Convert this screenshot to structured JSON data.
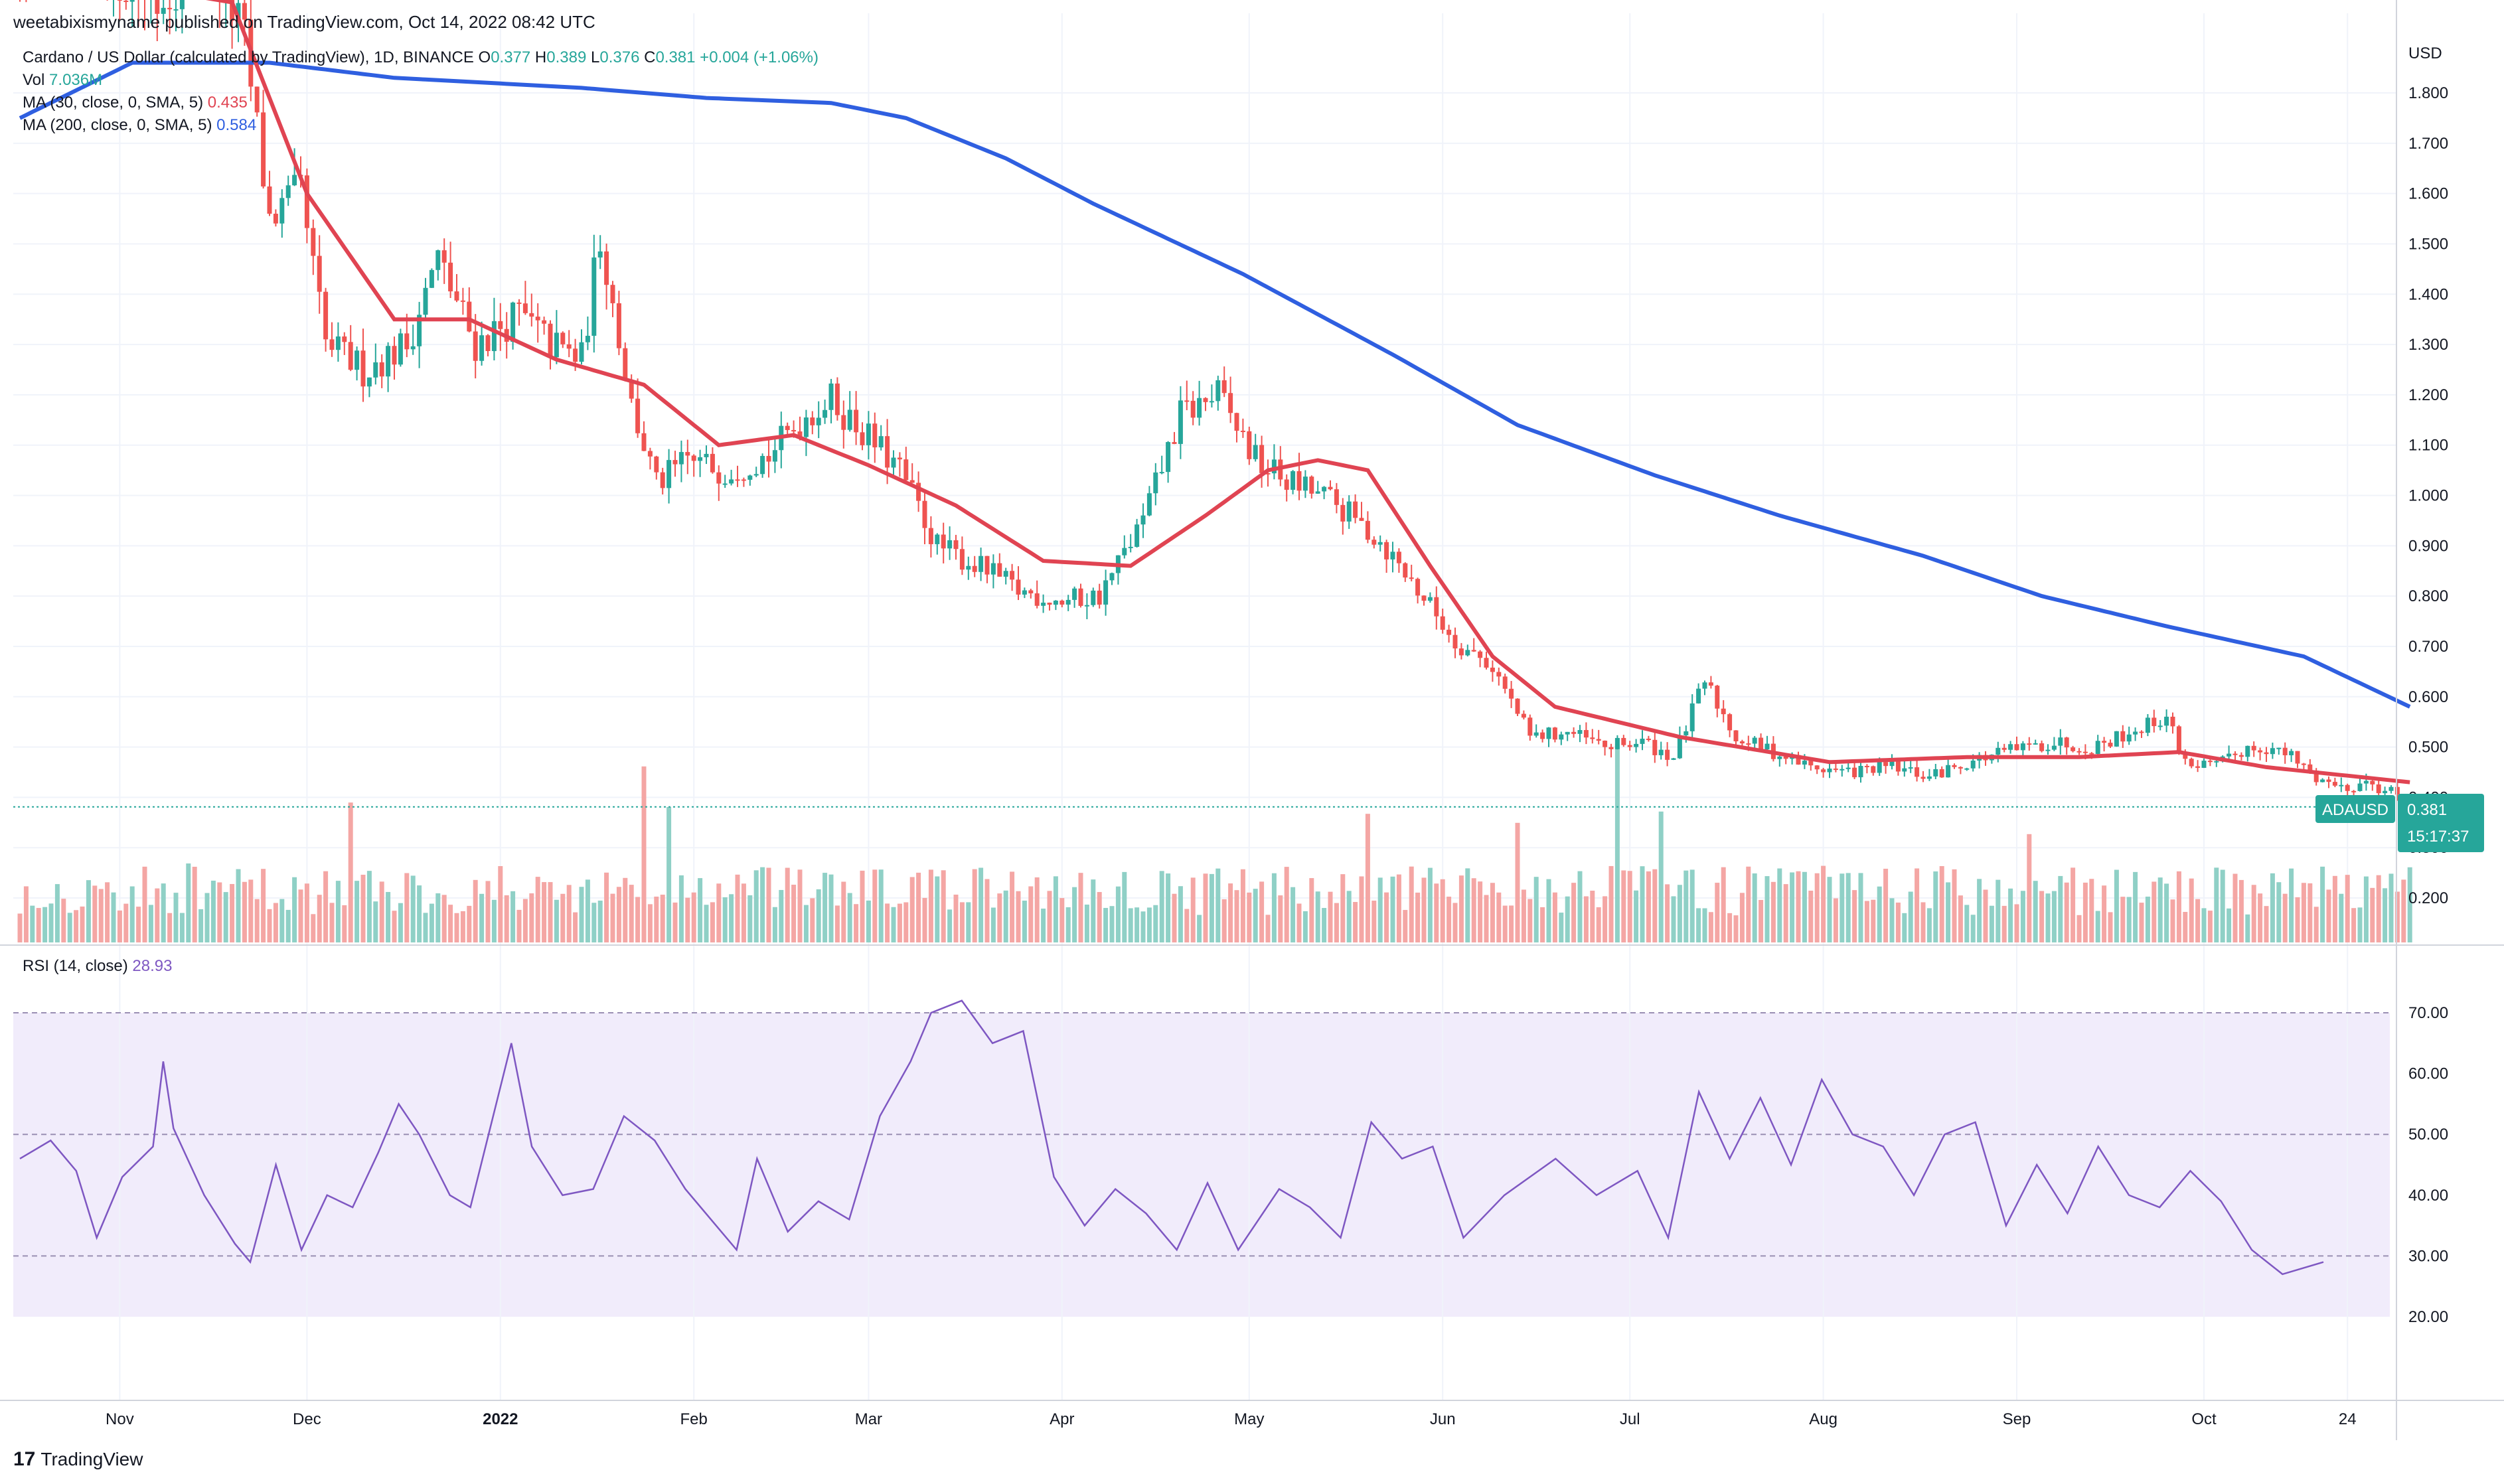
{
  "caption": "weetabixismyname published on TradingView.com, Oct 14, 2022 08:42 UTC",
  "legend": {
    "symbol": "Cardano / US Dollar (calculated by TradingView), 1D, BINANCE",
    "open_label": "O",
    "open": "0.377",
    "high_label": "H",
    "high": "0.389",
    "low_label": "L",
    "low": "0.376",
    "close_label": "C",
    "close": "0.381",
    "change": "+0.004 (+1.06%)",
    "vol_label": "Vol",
    "vol": "7.036M",
    "ma30_label": "MA (30, close, 0, SMA, 5)",
    "ma30": "0.435",
    "ma200_label": "MA (200, close, 0, SMA, 5)",
    "ma200": "0.584"
  },
  "rsi_legend": {
    "label": "RSI (14, close)",
    "value": "28.93"
  },
  "price_tag": {
    "symbol": "ADAUSD",
    "price": "0.381",
    "countdown": "15:17:37"
  },
  "footer": {
    "brand": "TradingView",
    "logo": "17"
  },
  "colors": {
    "up": "#26a69a",
    "down": "#ef5350",
    "ma30": "#e04452",
    "ma200": "#2f5fe0",
    "rsi": "#7e57c2",
    "rsi_band": "#f1ecfb"
  },
  "chart_data": [
    {
      "type": "candlestick",
      "unit": "USD",
      "yaxis_ticks": [
        "0.200",
        "0.300",
        "0.400",
        "0.500",
        "0.600",
        "0.700",
        "0.800",
        "0.900",
        "1.000",
        "1.100",
        "1.200",
        "1.300",
        "1.400",
        "1.500",
        "1.600",
        "1.700",
        "1.800"
      ],
      "xaxis_ticks": [
        "Nov",
        "Dec",
        "2022",
        "Feb",
        "Mar",
        "Apr",
        "May",
        "Jun",
        "Jul",
        "Aug",
        "Sep",
        "Oct",
        "24"
      ],
      "start_date": "2021-10-16",
      "end_date": "2022-10-14",
      "close_anchors": [
        [
          0,
          2.1
        ],
        [
          14,
          2.05
        ],
        [
          22,
          1.98
        ],
        [
          30,
          2.1
        ],
        [
          36,
          1.9
        ],
        [
          40,
          1.55
        ],
        [
          45,
          1.6
        ],
        [
          49,
          1.3
        ],
        [
          55,
          1.25
        ],
        [
          62,
          1.3
        ],
        [
          67,
          1.47
        ],
        [
          73,
          1.3
        ],
        [
          80,
          1.36
        ],
        [
          85,
          1.3
        ],
        [
          90,
          1.27
        ],
        [
          93,
          1.52
        ],
        [
          98,
          1.18
        ],
        [
          102,
          1.02
        ],
        [
          107,
          1.07
        ],
        [
          113,
          1.05
        ],
        [
          120,
          1.08
        ],
        [
          126,
          1.16
        ],
        [
          130,
          1.19
        ],
        [
          134,
          1.14
        ],
        [
          141,
          1.05
        ],
        [
          147,
          0.9
        ],
        [
          155,
          0.85
        ],
        [
          160,
          0.81
        ],
        [
          167,
          0.79
        ],
        [
          173,
          0.8
        ],
        [
          180,
          0.95
        ],
        [
          186,
          1.16
        ],
        [
          192,
          1.2
        ],
        [
          198,
          1.07
        ],
        [
          203,
          1.03
        ],
        [
          210,
          0.99
        ],
        [
          218,
          0.91
        ],
        [
          226,
          0.78
        ],
        [
          230,
          0.71
        ],
        [
          236,
          0.66
        ],
        [
          242,
          0.52
        ],
        [
          248,
          0.53
        ],
        [
          254,
          0.5
        ],
        [
          260,
          0.51
        ],
        [
          265,
          0.48
        ],
        [
          270,
          0.63
        ],
        [
          275,
          0.52
        ],
        [
          281,
          0.49
        ],
        [
          287,
          0.46
        ],
        [
          293,
          0.45
        ],
        [
          300,
          0.46
        ],
        [
          306,
          0.44
        ],
        [
          312,
          0.47
        ],
        [
          318,
          0.49
        ],
        [
          326,
          0.51
        ],
        [
          332,
          0.5
        ],
        [
          338,
          0.53
        ],
        [
          344,
          0.56
        ],
        [
          347,
          0.47
        ],
        [
          352,
          0.46
        ],
        [
          357,
          0.5
        ],
        [
          360,
          0.5
        ],
        [
          364,
          0.48
        ],
        [
          368,
          0.44
        ],
        [
          372,
          0.42
        ],
        [
          376,
          0.43
        ],
        [
          380,
          0.41
        ],
        [
          383,
          0.38
        ]
      ],
      "ma30_anchors": [
        [
          0,
          2.05
        ],
        [
          34,
          1.98
        ],
        [
          46,
          1.6
        ],
        [
          60,
          1.35
        ],
        [
          72,
          1.35
        ],
        [
          86,
          1.27
        ],
        [
          100,
          1.22
        ],
        [
          112,
          1.1
        ],
        [
          124,
          1.12
        ],
        [
          136,
          1.06
        ],
        [
          150,
          0.98
        ],
        [
          164,
          0.87
        ],
        [
          178,
          0.86
        ],
        [
          190,
          0.96
        ],
        [
          200,
          1.05
        ],
        [
          208,
          1.07
        ],
        [
          216,
          1.05
        ],
        [
          226,
          0.86
        ],
        [
          236,
          0.68
        ],
        [
          246,
          0.58
        ],
        [
          256,
          0.55
        ],
        [
          266,
          0.52
        ],
        [
          290,
          0.47
        ],
        [
          312,
          0.48
        ],
        [
          330,
          0.48
        ],
        [
          346,
          0.49
        ],
        [
          360,
          0.46
        ],
        [
          383,
          0.43
        ]
      ],
      "ma200_anchors": [
        [
          0,
          1.75
        ],
        [
          18,
          1.86
        ],
        [
          40,
          1.86
        ],
        [
          60,
          1.83
        ],
        [
          90,
          1.81
        ],
        [
          110,
          1.79
        ],
        [
          130,
          1.78
        ],
        [
          142,
          1.75
        ],
        [
          158,
          1.67
        ],
        [
          172,
          1.58
        ],
        [
          196,
          1.44
        ],
        [
          220,
          1.28
        ],
        [
          240,
          1.14
        ],
        [
          262,
          1.04
        ],
        [
          282,
          0.96
        ],
        [
          305,
          0.88
        ],
        [
          324,
          0.8
        ],
        [
          344,
          0.74
        ],
        [
          366,
          0.68
        ],
        [
          383,
          0.58
        ]
      ]
    },
    {
      "type": "bar",
      "title": "Vol",
      "volume_peaks": [
        [
          27,
          0.35
        ],
        [
          53,
          0.62
        ],
        [
          100,
          0.78
        ],
        [
          104,
          0.6
        ],
        [
          216,
          0.57
        ],
        [
          240,
          0.53
        ],
        [
          256,
          0.88
        ],
        [
          263,
          0.58
        ],
        [
          322,
          0.48
        ]
      ]
    },
    {
      "type": "line",
      "title": "RSI (14, close)",
      "yaxis_ticks": [
        "20.00",
        "30.00",
        "40.00",
        "50.00",
        "60.00",
        "70.00"
      ],
      "bands": [
        30,
        50,
        70
      ],
      "rsi_anchors": [
        [
          0,
          46
        ],
        [
          6,
          49
        ],
        [
          11,
          44
        ],
        [
          15,
          33
        ],
        [
          20,
          43
        ],
        [
          26,
          48
        ],
        [
          28,
          62
        ],
        [
          30,
          51
        ],
        [
          36,
          40
        ],
        [
          42,
          32
        ],
        [
          45,
          29
        ],
        [
          50,
          45
        ],
        [
          55,
          31
        ],
        [
          60,
          40
        ],
        [
          65,
          38
        ],
        [
          70,
          47
        ],
        [
          74,
          55
        ],
        [
          78,
          50
        ],
        [
          84,
          40
        ],
        [
          88,
          38
        ],
        [
          96,
          65
        ],
        [
          100,
          48
        ],
        [
          106,
          40
        ],
        [
          112,
          41
        ],
        [
          118,
          53
        ],
        [
          124,
          49
        ],
        [
          130,
          41
        ],
        [
          136,
          35
        ],
        [
          140,
          31
        ],
        [
          144,
          46
        ],
        [
          150,
          34
        ],
        [
          156,
          39
        ],
        [
          162,
          36
        ],
        [
          168,
          53
        ],
        [
          174,
          62
        ],
        [
          178,
          70
        ],
        [
          184,
          72
        ],
        [
          190,
          65
        ],
        [
          196,
          67
        ],
        [
          202,
          43
        ],
        [
          208,
          35
        ],
        [
          214,
          41
        ],
        [
          220,
          37
        ],
        [
          226,
          31
        ],
        [
          232,
          42
        ],
        [
          238,
          31
        ],
        [
          246,
          41
        ],
        [
          252,
          38
        ],
        [
          258,
          33
        ],
        [
          264,
          52
        ],
        [
          270,
          46
        ],
        [
          276,
          48
        ],
        [
          282,
          33
        ],
        [
          290,
          40
        ],
        [
          300,
          46
        ],
        [
          308,
          40
        ],
        [
          316,
          44
        ],
        [
          322,
          33
        ],
        [
          328,
          57
        ],
        [
          334,
          46
        ],
        [
          340,
          56
        ],
        [
          346,
          45
        ],
        [
          352,
          59
        ],
        [
          358,
          50
        ],
        [
          364,
          48
        ],
        [
          370,
          40
        ],
        [
          376,
          50
        ],
        [
          382,
          52
        ],
        [
          388,
          35
        ],
        [
          394,
          45
        ],
        [
          400,
          37
        ],
        [
          406,
          48
        ],
        [
          412,
          40
        ],
        [
          418,
          38
        ],
        [
          424,
          44
        ],
        [
          430,
          39
        ],
        [
          436,
          31
        ],
        [
          442,
          27
        ],
        [
          450,
          29
        ]
      ]
    }
  ]
}
